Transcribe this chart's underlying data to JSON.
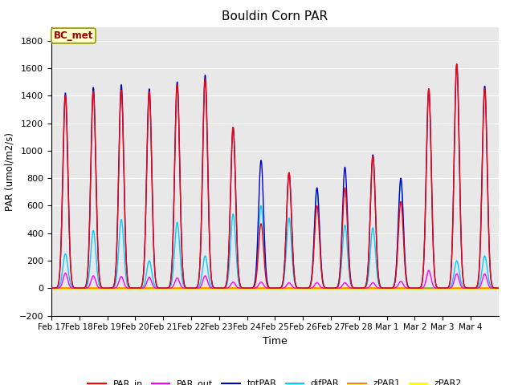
{
  "title": "Bouldin Corn PAR",
  "ylabel": "PAR (umol/m2/s)",
  "xlabel": "Time",
  "annotation": "BC_met",
  "ylim": [
    -200,
    1900
  ],
  "yticks": [
    -200,
    0,
    200,
    400,
    600,
    800,
    1000,
    1200,
    1400,
    1600,
    1800
  ],
  "colors": {
    "PAR_in": "#ff0000",
    "PAR_out": "#ff00ff",
    "totPAR": "#0000cc",
    "difPAR": "#00ccff",
    "zPAR1": "#ff8800",
    "zPAR2": "#ffff00"
  },
  "bg_color": "#e8e8e8",
  "annotation_bg": "#ffffcc",
  "annotation_text_color": "#990000",
  "annotation_border": "#999900",
  "num_days": 16,
  "day_peaks_totPAR": [
    1420,
    1460,
    1480,
    1450,
    1500,
    1550,
    1170,
    930,
    840,
    730,
    880,
    970,
    800,
    1450,
    1630,
    1470
  ],
  "day_peaks_PAR_in": [
    1400,
    1430,
    1440,
    1430,
    1480,
    1520,
    1170,
    470,
    840,
    600,
    730,
    960,
    630,
    1450,
    1630,
    1450
  ],
  "day_peaks_PAR_out": [
    110,
    90,
    85,
    80,
    75,
    90,
    45,
    45,
    40,
    40,
    40,
    40,
    50,
    130,
    105,
    105
  ],
  "day_peaks_difPAR": [
    250,
    420,
    500,
    200,
    480,
    235,
    540,
    600,
    510,
    720,
    460,
    440,
    780,
    0,
    200,
    235
  ],
  "xtick_labels": [
    "Feb 17",
    "Feb 18",
    "Feb 19",
    "Feb 20",
    "Feb 21",
    "Feb 22",
    "Feb 23",
    "Feb 24",
    "Feb 25",
    "Feb 26",
    "Feb 27",
    "Feb 28",
    "Mar 1",
    "Mar 2",
    "Mar 3",
    "Mar 4"
  ]
}
